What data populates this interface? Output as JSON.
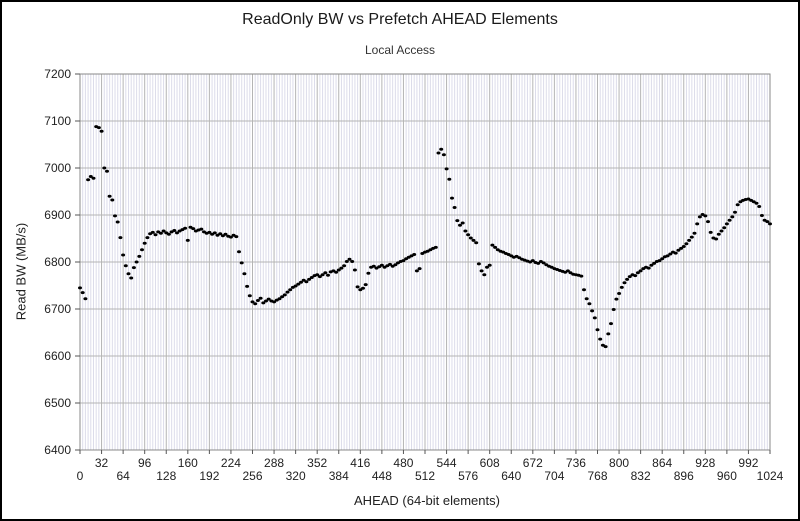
{
  "header": {
    "title": "ReadOnly BW vs Prefetch AHEAD Elements",
    "subtitle": "Local Access"
  },
  "chart_data": {
    "type": "scatter",
    "title": "ReadOnly BW vs Prefetch AHEAD Elements",
    "subtitle": "Local Access",
    "xlabel": "AHEAD (64-bit elements)",
    "ylabel": "Read BW (MB/s)",
    "xlim": [
      0,
      1024
    ],
    "ylim": [
      6400,
      7200
    ],
    "x_major_step": 32,
    "x_minor_step": 4,
    "y_major_step": 100,
    "grid": "on",
    "legend": "none",
    "x_ticks_upper": [
      "32",
      "96",
      "160",
      "224",
      "288",
      "352",
      "416",
      "480",
      "544",
      "608",
      "672",
      "736",
      "800",
      "864",
      "928",
      "992"
    ],
    "x_ticks_lower": [
      "0",
      "64",
      "128",
      "192",
      "256",
      "320",
      "384",
      "448",
      "512",
      "576",
      "640",
      "704",
      "768",
      "832",
      "896",
      "960",
      "1024"
    ],
    "y_ticks": [
      "6400",
      "6500",
      "6600",
      "6700",
      "6800",
      "6900",
      "7000",
      "7100",
      "7200"
    ],
    "marker_color": "#000000",
    "grid_major_color": "#b4b4b4",
    "grid_minor_color": "#dcdcea",
    "frame_color": "#8a8a8a",
    "tick_color": "#555555",
    "x_start": 0,
    "x_step": 4,
    "series_name": "Read BW",
    "bw": [
      6745,
      6735,
      6722,
      6975,
      6982,
      6978,
      7088,
      7086,
      7078,
      7000,
      6993,
      6940,
      6932,
      6898,
      6885,
      6852,
      6815,
      6792,
      6775,
      6766,
      6788,
      6800,
      6812,
      6826,
      6840,
      6852,
      6860,
      6863,
      6858,
      6864,
      6861,
      6866,
      6862,
      6859,
      6864,
      6867,
      6862,
      6866,
      6869,
      6872,
      6846,
      6874,
      6871,
      6866,
      6868,
      6870,
      6864,
      6861,
      6863,
      6859,
      6862,
      6857,
      6860,
      6856,
      6859,
      6855,
      6853,
      6857,
      6854,
      6822,
      6798,
      6775,
      6748,
      6728,
      6715,
      6711,
      6718,
      6723,
      6713,
      6717,
      6721,
      6717,
      6715,
      6719,
      6722,
      6726,
      6730,
      6736,
      6741,
      6746,
      6749,
      6753,
      6757,
      6761,
      6758,
      6763,
      6767,
      6771,
      6773,
      6769,
      6773,
      6777,
      6772,
      6779,
      6781,
      6778,
      6783,
      6787,
      6792,
      6801,
      6806,
      6801,
      6783,
      6747,
      6741,
      6744,
      6752,
      6776,
      6789,
      6791,
      6787,
      6790,
      6793,
      6789,
      6792,
      6795,
      6791,
      6794,
      6798,
      6801,
      6803,
      6807,
      6810,
      6813,
      6816,
      6781,
      6786,
      6818,
      6821,
      6823,
      6826,
      6829,
      6831,
      7032,
      7040,
      7028,
      6998,
      6976,
      6936,
      6916,
      6888,
      6878,
      6883,
      6866,
      6858,
      6851,
      6846,
      6841,
      6796,
      6781,
      6773,
      6789,
      6793,
      6836,
      6831,
      6826,
      6823,
      6821,
      6818,
      6816,
      6813,
      6810,
      6812,
      6809,
      6806,
      6804,
      6802,
      6800,
      6803,
      6799,
      6797,
      6801,
      6798,
      6794,
      6791,
      6789,
      6786,
      6784,
      6782,
      6780,
      6778,
      6781,
      6777,
      6774,
      6773,
      6772,
      6770,
      6741,
      6722,
      6711,
      6696,
      6681,
      6656,
      6636,
      6623,
      6620,
      6647,
      6669,
      6699,
      6721,
      6733,
      6746,
      6756,
      6763,
      6769,
      6773,
      6771,
      6777,
      6781,
      6786,
      6789,
      6787,
      6793,
      6797,
      6801,
      6803,
      6807,
      6811,
      6813,
      6817,
      6821,
      6819,
      6825,
      6829,
      6833,
      6839,
      6846,
      6853,
      6861,
      6881,
      6896,
      6901,
      6898,
      6886,
      6863,
      6851,
      6849,
      6859,
      6866,
      6873,
      6881,
      6889,
      6896,
      6906,
      6922,
      6928,
      6931,
      6933,
      6934,
      6931,
      6928,
      6925,
      6918,
      6899,
      6889,
      6886,
      6881
    ]
  }
}
